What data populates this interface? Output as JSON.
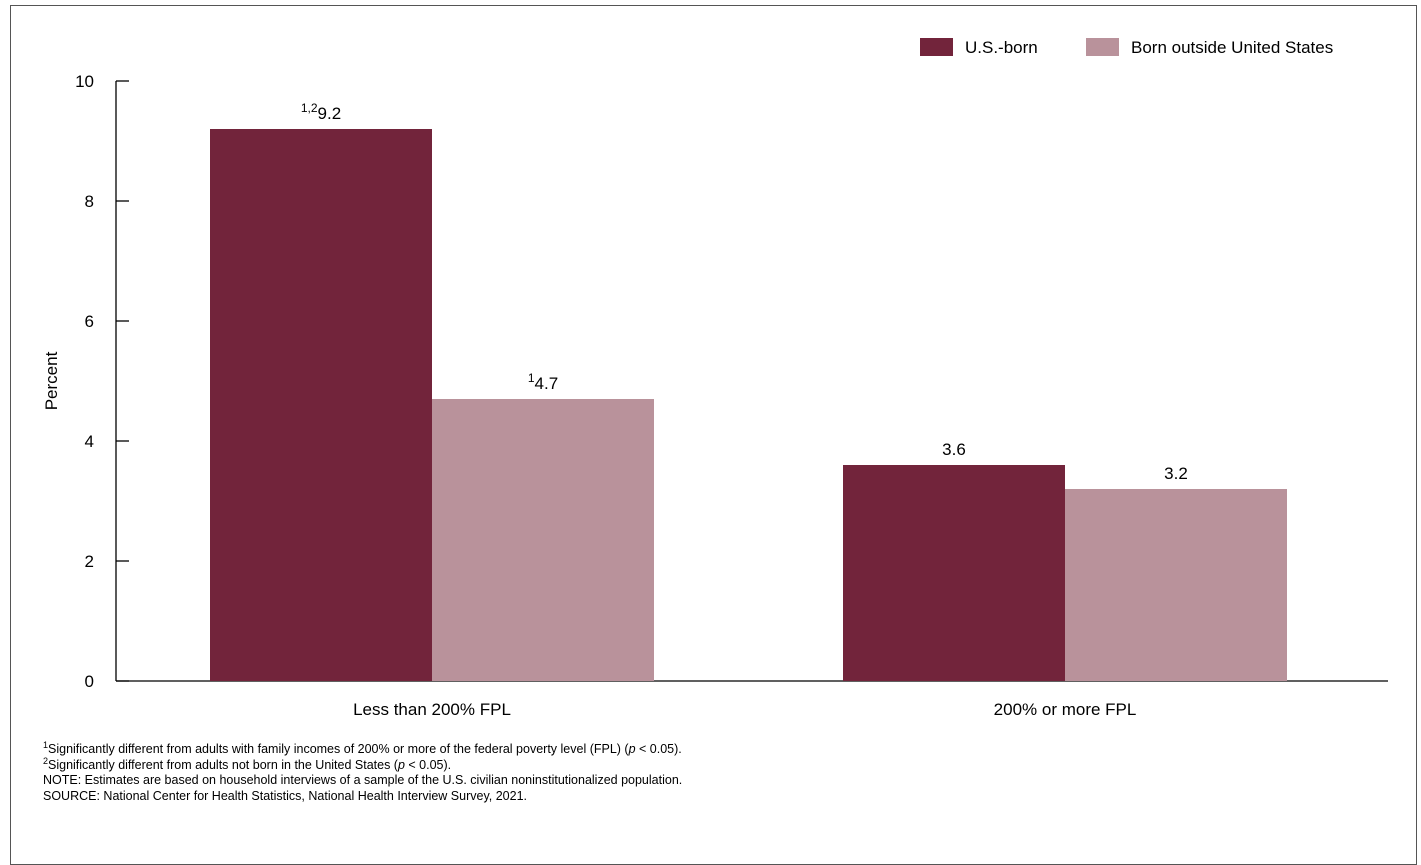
{
  "chart_data": {
    "type": "bar",
    "categories": [
      "Less than 200% FPL",
      "200% or more FPL"
    ],
    "series": [
      {
        "name": "U.S.-born",
        "color": "#72243b",
        "values": [
          9.2,
          3.6
        ],
        "superscripts": [
          "1,2",
          ""
        ],
        "labels": [
          "9.2",
          "3.6"
        ]
      },
      {
        "name": "Born outside United States",
        "color": "#b9929b",
        "values": [
          4.7,
          3.2
        ],
        "superscripts": [
          "1",
          ""
        ],
        "labels": [
          "4.7",
          "3.2"
        ]
      }
    ],
    "ylabel": "Percent",
    "xlabel": "",
    "ylim": [
      0,
      10
    ],
    "yticks": [
      "0",
      "2",
      "4",
      "6",
      "8",
      "10"
    ],
    "legend_position": "top-right",
    "grid": false
  },
  "footnotes": {
    "note1": {
      "sup": "1",
      "before": "Significantly different from adults with family incomes of 200% or more of the federal poverty level (FPL) (",
      "p": "p",
      "after": " < 0.05)."
    },
    "note2": {
      "sup": "2",
      "before": "Significantly different from adults not born in the United States (",
      "p": "p",
      "after": " < 0.05)."
    },
    "note": "NOTE: Estimates are based on household interviews of a sample of the U.S. civilian noninstitutionalized population.",
    "source": "SOURCE: National Center for Health Statistics, National Health Interview Survey, 2021."
  }
}
